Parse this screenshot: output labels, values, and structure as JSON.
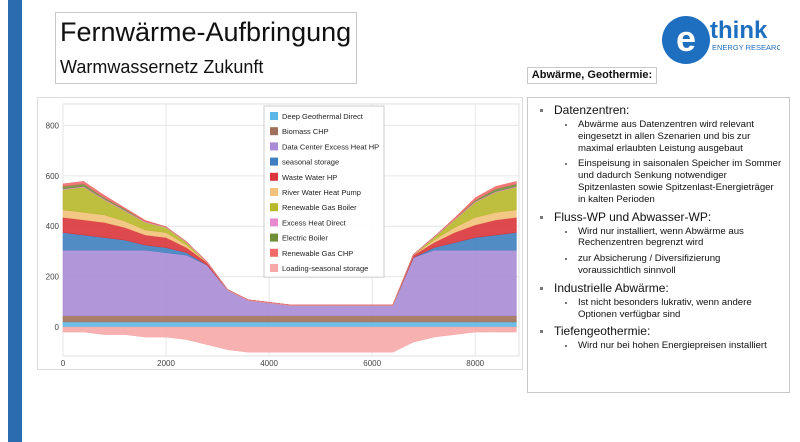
{
  "header": {
    "title": "Fernwärme-Aufbringung",
    "subtitle": "Warmwassernetz Zukunft"
  },
  "logo": {
    "letter": "e",
    "word": "think",
    "tagline": "ENERGY RESEARCH"
  },
  "chart_data": {
    "type": "stacked_area",
    "x": [
      0,
      400,
      800,
      1200,
      1600,
      2000,
      2400,
      2800,
      3200,
      3600,
      4000,
      4400,
      4800,
      5200,
      5600,
      6000,
      6400,
      6800,
      7200,
      7600,
      8000,
      8400,
      8800
    ],
    "series": [
      {
        "name": "Deep Geothermal Direct",
        "color": "#5bb8e6",
        "values": [
          20,
          20,
          20,
          20,
          20,
          20,
          20,
          20,
          20,
          20,
          20,
          20,
          20,
          20,
          20,
          20,
          20,
          20,
          20,
          20,
          20,
          20,
          20
        ]
      },
      {
        "name": "Biomass CHP",
        "color": "#a0705a",
        "values": [
          25,
          25,
          25,
          25,
          25,
          25,
          25,
          25,
          25,
          25,
          25,
          25,
          25,
          25,
          25,
          25,
          25,
          25,
          25,
          25,
          25,
          25,
          25
        ]
      },
      {
        "name": "Data Center Excess Heat HP",
        "color": "#a98bd6",
        "values": [
          260,
          260,
          260,
          260,
          260,
          250,
          240,
          200,
          100,
          60,
          50,
          40,
          40,
          40,
          40,
          40,
          40,
          230,
          260,
          260,
          260,
          260,
          260
        ]
      },
      {
        "name": "seasonal storage",
        "color": "#3f7fbf",
        "values": [
          70,
          60,
          50,
          40,
          20,
          20,
          10,
          0,
          0,
          0,
          0,
          0,
          0,
          0,
          0,
          0,
          0,
          0,
          10,
          30,
          50,
          60,
          70
        ]
      },
      {
        "name": "Waste Water HP",
        "color": "#d9353a",
        "values": [
          60,
          60,
          60,
          50,
          40,
          40,
          20,
          10,
          0,
          0,
          0,
          0,
          0,
          0,
          0,
          0,
          0,
          10,
          20,
          40,
          50,
          60,
          60
        ]
      },
      {
        "name": "River Water Heat Pump",
        "color": "#f2c27a",
        "values": [
          30,
          30,
          30,
          25,
          20,
          20,
          10,
          0,
          0,
          0,
          0,
          0,
          0,
          0,
          0,
          0,
          0,
          0,
          10,
          20,
          30,
          30,
          30
        ]
      },
      {
        "name": "Renewable Gas Boiler",
        "color": "#b8b82a",
        "values": [
          80,
          100,
          60,
          40,
          30,
          20,
          10,
          0,
          0,
          0,
          0,
          0,
          0,
          0,
          0,
          0,
          0,
          0,
          10,
          30,
          60,
          80,
          90
        ]
      },
      {
        "name": "Excess Heat Direct",
        "color": "#e88ad0",
        "values": [
          3,
          3,
          3,
          3,
          3,
          3,
          3,
          3,
          3,
          3,
          3,
          3,
          3,
          3,
          3,
          3,
          3,
          3,
          3,
          3,
          3,
          3,
          3
        ]
      },
      {
        "name": "Electric Boiler",
        "color": "#6f8f3a",
        "values": [
          10,
          10,
          5,
          5,
          0,
          0,
          0,
          0,
          0,
          0,
          0,
          0,
          0,
          0,
          0,
          0,
          0,
          0,
          0,
          0,
          5,
          10,
          10
        ]
      },
      {
        "name": "Renewable Gas CHP",
        "color": "#f06a6a",
        "values": [
          10,
          10,
          10,
          5,
          5,
          0,
          0,
          0,
          0,
          0,
          0,
          0,
          0,
          0,
          0,
          0,
          0,
          0,
          0,
          5,
          10,
          10,
          10
        ]
      },
      {
        "name": "Loading-seasonal storage",
        "color": "#f7a8a8",
        "values": [
          -20,
          -20,
          -30,
          -30,
          -40,
          -40,
          -50,
          -70,
          -90,
          -100,
          -100,
          -100,
          -100,
          -100,
          -100,
          -100,
          -100,
          -60,
          -40,
          -30,
          -20,
          -20,
          -20
        ]
      }
    ],
    "xlim": [
      0,
      8850
    ],
    "ylim": [
      -115,
      885
    ],
    "xticks": [
      0,
      2000,
      4000,
      6000,
      8000
    ],
    "yticks": [
      0,
      200,
      400,
      600,
      800
    ],
    "grid": true,
    "legend": "top"
  },
  "panel": {
    "heading": "Abwärme, Geothermie:",
    "sections": [
      {
        "title": "Datenzentren:",
        "items": [
          "Abwärme aus Datenzentren wird relevant eingesetzt in allen Szenarien und bis zur maximal erlaubten Leistung ausgebaut",
          "Einspeisung in saisonalen Speicher im Sommer und dadurch Senkung notwendiger Spitzenlasten sowie Spitzenlast-Energieträger in kalten Perioden"
        ]
      },
      {
        "title": "Fluss-WP und Abwasser-WP:",
        "items": [
          "Wird nur installiert, wenn Abwärme aus Rechenzentren begrenzt wird",
          "zur Absicherung / Diversifizierung voraussichtlich sinnvoll"
        ]
      },
      {
        "title": "Industrielle Abwärme:",
        "items": [
          "Ist nicht besonders lukrativ, wenn andere Optionen verfügbar sind"
        ]
      },
      {
        "title": "Tiefengeothermie:",
        "items": [
          "Wird nur bei hohen Energiepreisen installiert"
        ]
      }
    ]
  }
}
